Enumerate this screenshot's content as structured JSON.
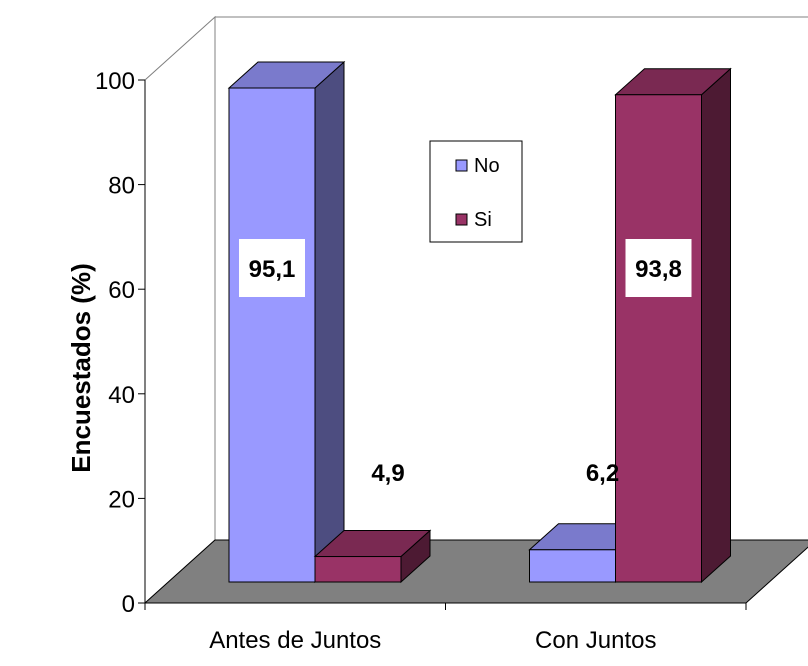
{
  "chart_data": {
    "type": "bar",
    "categories": [
      "Antes de Juntos",
      "Con Juntos"
    ],
    "series": [
      {
        "name": "No",
        "values": [
          95.1,
          6.2
        ],
        "color": "#9999ff",
        "side_color": "#4d4d80",
        "top_color": "#7a7acc"
      },
      {
        "name": "Si",
        "values": [
          4.9,
          93.8
        ],
        "color": "#993366",
        "side_color": "#4d1a33",
        "top_color": "#7a2952"
      }
    ],
    "data_labels": [
      [
        "95,1",
        "6,2"
      ],
      [
        "4,9",
        "93,8"
      ]
    ],
    "title": "",
    "xlabel": "",
    "ylabel": "Encuestados (%)",
    "yticks": [
      "0",
      "20",
      "40",
      "60",
      "80",
      "100"
    ],
    "ylim": [
      0,
      100
    ],
    "grid": false,
    "legend_position": "center",
    "floor_color": "#808080",
    "wall_color": "#ffffff"
  }
}
